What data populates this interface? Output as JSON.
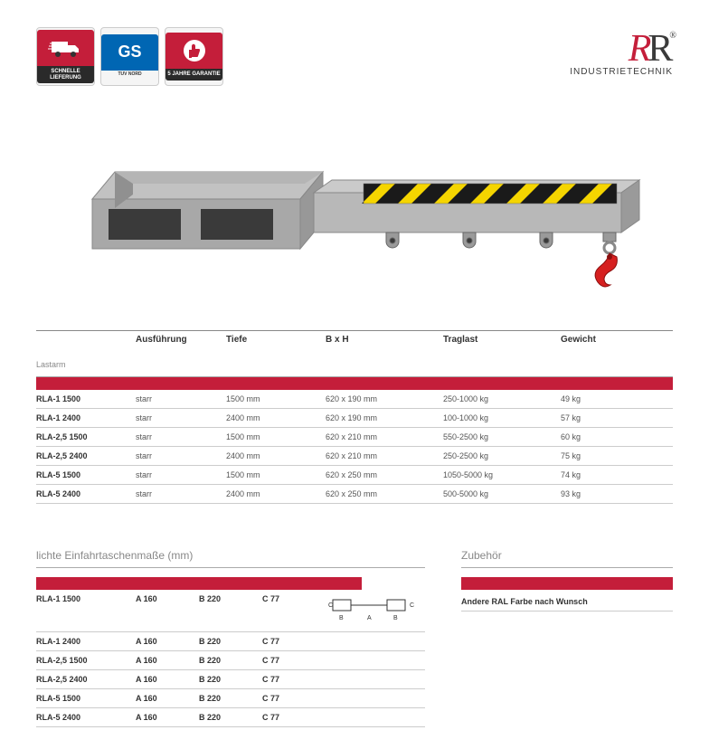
{
  "badges": [
    {
      "label": "SCHNELLE\nLIEFERUNG",
      "type": "truck"
    },
    {
      "label": "TUV NORD",
      "type": "gs",
      "big": "GS"
    },
    {
      "label": "5 JAHRE\nGARANTIE",
      "type": "thumb"
    }
  ],
  "logo": {
    "text": "RR",
    "sub": "INDUSTRIETECHNIK",
    "reg": "®"
  },
  "main_table": {
    "category": "Lastarm",
    "columns": [
      "Ausführung",
      "Tiefe",
      "B x H",
      "Traglast",
      "Gewicht"
    ],
    "rows": [
      [
        "RLA-1 1500",
        "starr",
        "1500 mm",
        "620 x 190 mm",
        "250-1000 kg",
        "49 kg"
      ],
      [
        "RLA-1 2400",
        "starr",
        "2400 mm",
        "620 x 190 mm",
        "100-1000 kg",
        "57 kg"
      ],
      [
        "RLA-2,5 1500",
        "starr",
        "1500 mm",
        "620 x 210 mm",
        "550-2500 kg",
        "60 kg"
      ],
      [
        "RLA-2,5 2400",
        "starr",
        "2400 mm",
        "620 x 210 mm",
        "250-2500 kg",
        "75 kg"
      ],
      [
        "RLA-5 1500",
        "starr",
        "1500 mm",
        "620 x 250 mm",
        "1050-5000 kg",
        "74 kg"
      ],
      [
        "RLA-5 2400",
        "starr",
        "2400 mm",
        "620 x 250 mm",
        "500-5000 kg",
        "93 kg"
      ]
    ]
  },
  "pocket_table": {
    "title": "lichte Einfahrtaschenmaße (mm)",
    "rows": [
      [
        "RLA-1 1500",
        "A 160",
        "B 220",
        "C 77"
      ],
      [
        "RLA-1 2400",
        "A 160",
        "B 220",
        "C 77"
      ],
      [
        "RLA-2,5 1500",
        "A 160",
        "B 220",
        "C 77"
      ],
      [
        "RLA-2,5 2400",
        "A 160",
        "B 220",
        "C 77"
      ],
      [
        "RLA-5 1500",
        "A 160",
        "B 220",
        "C 77"
      ],
      [
        "RLA-5 2400",
        "A 160",
        "B 220",
        "C 77"
      ]
    ],
    "diagram_labels": {
      "c": "C",
      "b": "B",
      "a": "A"
    }
  },
  "zubehor": {
    "title": "Zubehör",
    "text": "Andere RAL Farbe nach Wunsch"
  },
  "colors": {
    "brand_red": "#c41e3a",
    "hazard_yellow": "#f5d500",
    "steel": "#b0b0b0",
    "steel_dark": "#8a8a8a"
  }
}
